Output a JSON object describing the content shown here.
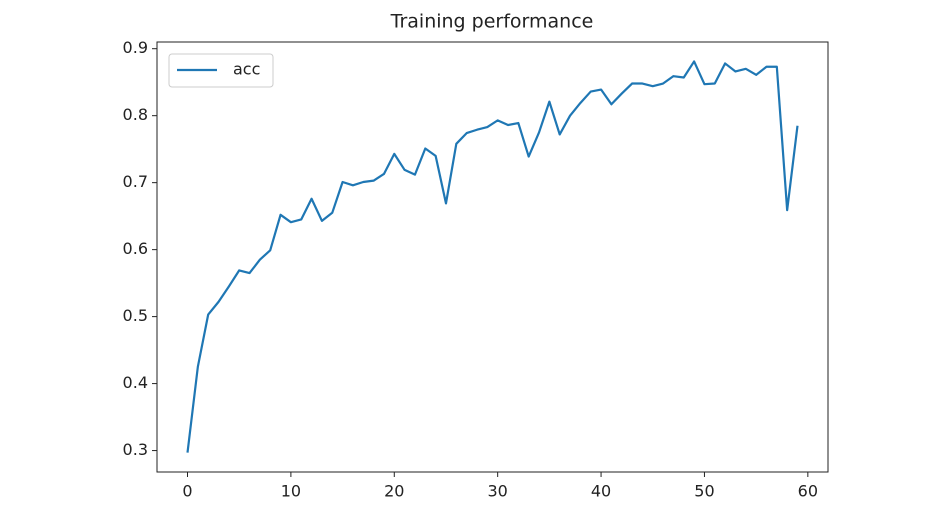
{
  "chart_data": {
    "type": "line",
    "title": "Training performance",
    "x": [
      0,
      1,
      2,
      3,
      4,
      5,
      6,
      7,
      8,
      9,
      10,
      11,
      12,
      13,
      14,
      15,
      16,
      17,
      18,
      19,
      20,
      21,
      22,
      23,
      24,
      25,
      26,
      27,
      28,
      29,
      30,
      31,
      32,
      33,
      34,
      35,
      36,
      37,
      38,
      39,
      40,
      41,
      42,
      43,
      44,
      45,
      46,
      47,
      48,
      49,
      50,
      51,
      52,
      53,
      54,
      55,
      56,
      57,
      58,
      59
    ],
    "series": [
      {
        "name": "acc",
        "color": "#1f77b4",
        "values": [
          0.297,
          0.425,
          0.503,
          0.522,
          0.545,
          0.569,
          0.565,
          0.585,
          0.599,
          0.652,
          0.641,
          0.645,
          0.676,
          0.643,
          0.655,
          0.701,
          0.696,
          0.701,
          0.703,
          0.713,
          0.743,
          0.719,
          0.712,
          0.751,
          0.74,
          0.669,
          0.758,
          0.774,
          0.779,
          0.783,
          0.793,
          0.786,
          0.789,
          0.739,
          0.775,
          0.821,
          0.772,
          0.8,
          0.819,
          0.836,
          0.839,
          0.817,
          0.833,
          0.848,
          0.848,
          0.844,
          0.848,
          0.859,
          0.857,
          0.881,
          0.847,
          0.848,
          0.878,
          0.866,
          0.87,
          0.861,
          0.873,
          0.873,
          0.659,
          0.785
        ]
      }
    ],
    "xlim": [
      -2.95,
      61.95
    ],
    "xticks": [
      0,
      10,
      20,
      30,
      40,
      50,
      60
    ],
    "ylim": [
      0.268,
      0.91
    ],
    "yticks": [
      0.3,
      0.4,
      0.5,
      0.6,
      0.7,
      0.8,
      0.9
    ],
    "grid": false,
    "legend": "upper left"
  }
}
